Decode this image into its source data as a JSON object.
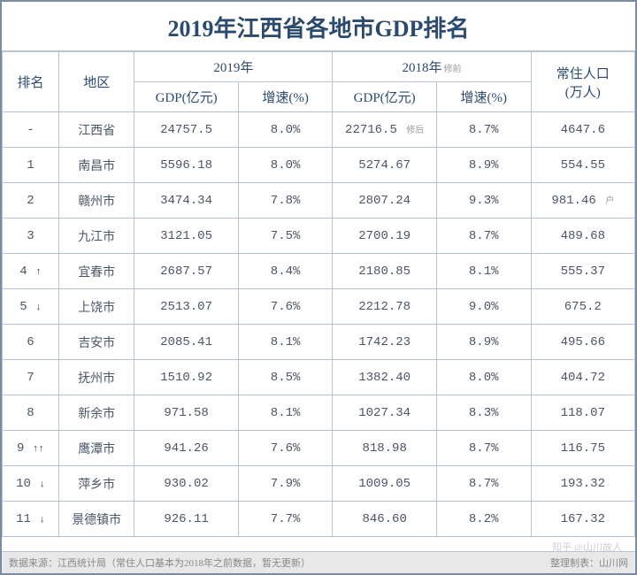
{
  "title": "2019年江西省各地市GDP排名",
  "header": {
    "rank": "排名",
    "region": "地区",
    "year2019": "2019年",
    "year2018": "2018年",
    "year2018_note": "修前",
    "population": "常住人口\n(万人)",
    "gdp": "GDP(亿元)",
    "growth": "增速(%)"
  },
  "rows": [
    {
      "rank": "-",
      "arrows": "",
      "region": "江西省",
      "gdp2019": "24757.5",
      "growth2019": "8.0%",
      "gdp2018": "22716.5",
      "gdp2018_note": "修后",
      "growth2018": "8.7%",
      "pop": "4647.6",
      "pop_note": ""
    },
    {
      "rank": "1",
      "arrows": "",
      "region": "南昌市",
      "gdp2019": "5596.18",
      "growth2019": "8.0%",
      "gdp2018": "5274.67",
      "gdp2018_note": "",
      "growth2018": "8.9%",
      "pop": "554.55",
      "pop_note": ""
    },
    {
      "rank": "2",
      "arrows": "",
      "region": "赣州市",
      "gdp2019": "3474.34",
      "growth2019": "7.8%",
      "gdp2018": "2807.24",
      "gdp2018_note": "",
      "growth2018": "9.3%",
      "pop": "981.46",
      "pop_note": "户"
    },
    {
      "rank": "3",
      "arrows": "",
      "region": "九江市",
      "gdp2019": "3121.05",
      "growth2019": "7.5%",
      "gdp2018": "2700.19",
      "gdp2018_note": "",
      "growth2018": "8.7%",
      "pop": "489.68",
      "pop_note": ""
    },
    {
      "rank": "4",
      "arrows": "↑",
      "region": "宜春市",
      "gdp2019": "2687.57",
      "growth2019": "8.4%",
      "gdp2018": "2180.85",
      "gdp2018_note": "",
      "growth2018": "8.1%",
      "pop": "555.37",
      "pop_note": ""
    },
    {
      "rank": "5",
      "arrows": "↓",
      "region": "上饶市",
      "gdp2019": "2513.07",
      "growth2019": "7.6%",
      "gdp2018": "2212.78",
      "gdp2018_note": "",
      "growth2018": "9.0%",
      "pop": "675.2",
      "pop_note": ""
    },
    {
      "rank": "6",
      "arrows": "",
      "region": "吉安市",
      "gdp2019": "2085.41",
      "growth2019": "8.1%",
      "gdp2018": "1742.23",
      "gdp2018_note": "",
      "growth2018": "8.9%",
      "pop": "495.66",
      "pop_note": ""
    },
    {
      "rank": "7",
      "arrows": "",
      "region": "抚州市",
      "gdp2019": "1510.92",
      "growth2019": "8.5%",
      "gdp2018": "1382.40",
      "gdp2018_note": "",
      "growth2018": "8.0%",
      "pop": "404.72",
      "pop_note": ""
    },
    {
      "rank": "8",
      "arrows": "",
      "region": "新余市",
      "gdp2019": "971.58",
      "growth2019": "8.1%",
      "gdp2018": "1027.34",
      "gdp2018_note": "",
      "growth2018": "8.3%",
      "pop": "118.07",
      "pop_note": ""
    },
    {
      "rank": "9",
      "arrows": "↑↑",
      "region": "鹰潭市",
      "gdp2019": "941.26",
      "growth2019": "7.6%",
      "gdp2018": "818.98",
      "gdp2018_note": "",
      "growth2018": "8.7%",
      "pop": "116.75",
      "pop_note": ""
    },
    {
      "rank": "10",
      "arrows": "↓",
      "region": "萍乡市",
      "gdp2019": "930.02",
      "growth2019": "7.9%",
      "gdp2018": "1009.05",
      "gdp2018_note": "",
      "growth2018": "8.7%",
      "pop": "193.32",
      "pop_note": ""
    },
    {
      "rank": "11",
      "arrows": "↓",
      "region": "景德镇市",
      "gdp2019": "926.11",
      "growth2019": "7.7%",
      "gdp2018": "846.60",
      "gdp2018_note": "",
      "growth2018": "8.2%",
      "pop": "167.32",
      "pop_note": ""
    }
  ],
  "footer": {
    "source": "数据来源：江西统计局（常住人口基本为2018年之前数据，暂无更新）",
    "credit": "整理制表：山川网"
  },
  "watermark": "知乎 @山川故人",
  "colors": {
    "border": "#b8c4d4",
    "outer_border": "#7a8ba3",
    "title_color": "#2b4a6f",
    "text_color": "#4a5568",
    "bg": "#ffffff",
    "footer_bg": "#e8e8e8"
  }
}
